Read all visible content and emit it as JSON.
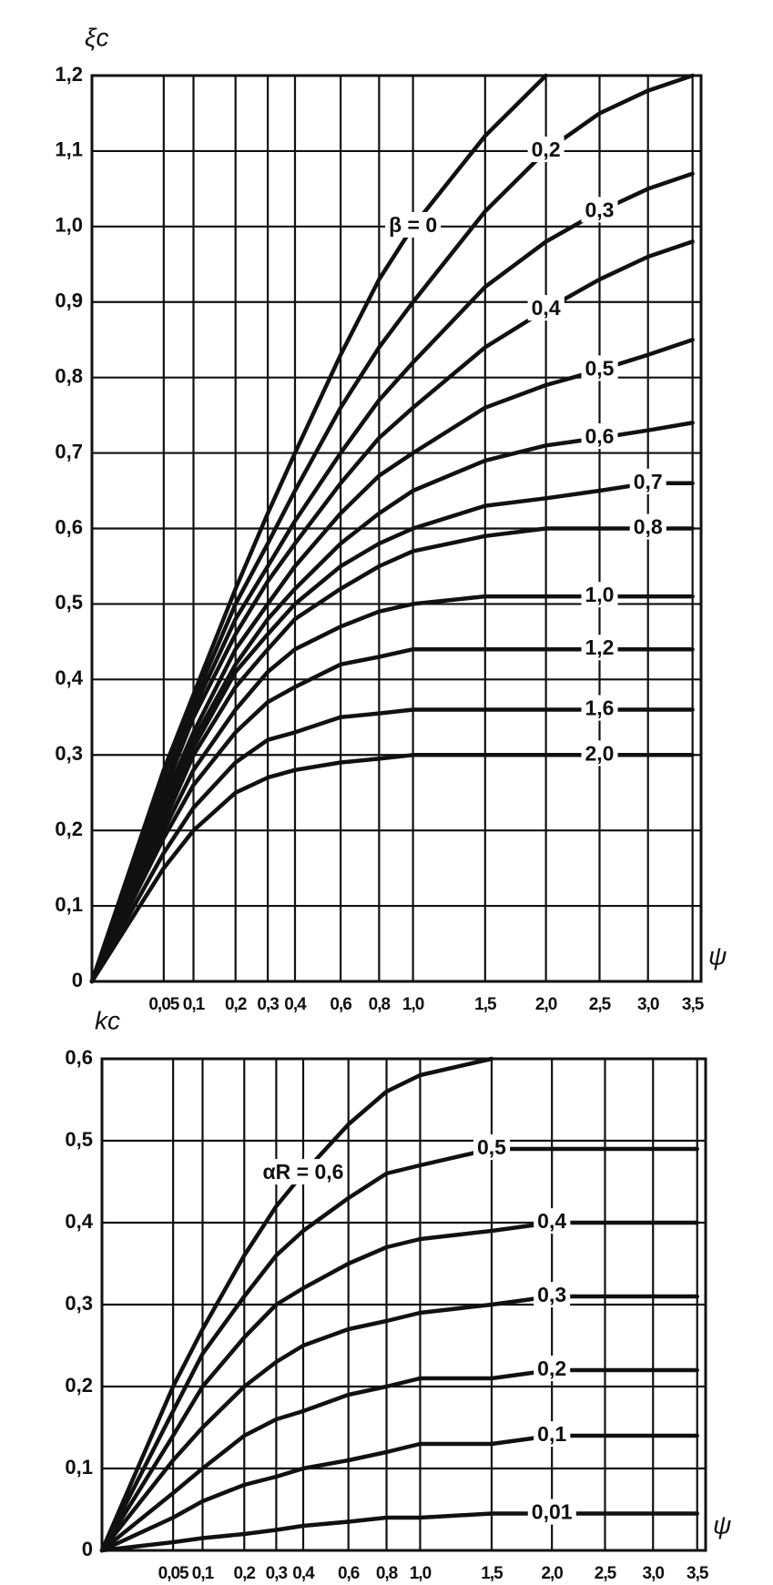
{
  "chart_data": [
    {
      "type": "line",
      "y_label": "ξc",
      "x_label": "ψ",
      "xscale": "sqrt",
      "grid": true,
      "color": "#111111",
      "xlim": [
        0,
        3.6
      ],
      "ylim": [
        0,
        1.2
      ],
      "xticks": [
        {
          "value": 0.05,
          "label": "0,05"
        },
        {
          "value": 0.1,
          "label": "0,1"
        },
        {
          "value": 0.2,
          "label": "0,2"
        },
        {
          "value": 0.3,
          "label": "0,3"
        },
        {
          "value": 0.4,
          "label": "0,4"
        },
        {
          "value": 0.6,
          "label": "0,6"
        },
        {
          "value": 0.8,
          "label": "0,8"
        },
        {
          "value": 1.0,
          "label": "1,0"
        },
        {
          "value": 1.5,
          "label": "1,5"
        },
        {
          "value": 2.0,
          "label": "2,0"
        },
        {
          "value": 2.5,
          "label": "2,5"
        },
        {
          "value": 3.0,
          "label": "3,0"
        },
        {
          "value": 3.5,
          "label": "3,5"
        }
      ],
      "yticks": [
        0,
        {
          "value": 0.1,
          "label": "0,1"
        },
        {
          "value": 0.2,
          "label": "0,2"
        },
        {
          "value": 0.3,
          "label": "0,3"
        },
        {
          "value": 0.4,
          "label": "0,4"
        },
        {
          "value": 0.5,
          "label": "0,5"
        },
        {
          "value": 0.6,
          "label": "0,6"
        },
        {
          "value": 0.7,
          "label": "0,7"
        },
        {
          "value": 0.8,
          "label": "0,8"
        },
        {
          "value": 0.9,
          "label": "0,9"
        },
        {
          "value": 1.0,
          "label": "1,0"
        },
        {
          "value": 1.1,
          "label": "1,1"
        },
        {
          "value": 1.2,
          "label": "1,2"
        }
      ],
      "x": [
        0,
        0.05,
        0.1,
        0.2,
        0.3,
        0.4,
        0.6,
        0.8,
        1.0,
        1.5,
        2.0,
        2.5,
        3.0,
        3.5
      ],
      "series": [
        {
          "name": "β = 0",
          "values": [
            0,
            0.28,
            0.38,
            0.52,
            0.62,
            0.7,
            0.83,
            0.93,
            1.0,
            1.12,
            1.2,
            null,
            null,
            null
          ]
        },
        {
          "name": "0,2",
          "values": [
            0,
            0.27,
            0.37,
            0.5,
            0.58,
            0.65,
            0.76,
            0.84,
            0.9,
            1.02,
            1.1,
            1.15,
            1.18,
            1.2
          ]
        },
        {
          "name": "0,3",
          "values": [
            0,
            0.26,
            0.36,
            0.48,
            0.55,
            0.61,
            0.7,
            0.77,
            0.82,
            0.92,
            0.98,
            1.02,
            1.05,
            1.07
          ]
        },
        {
          "name": "0,4",
          "values": [
            0,
            0.25,
            0.35,
            0.46,
            0.53,
            0.58,
            0.66,
            0.72,
            0.76,
            0.84,
            0.89,
            0.93,
            0.96,
            0.98
          ]
        },
        {
          "name": "0,5",
          "values": [
            0,
            0.24,
            0.33,
            0.44,
            0.5,
            0.55,
            0.62,
            0.67,
            0.7,
            0.76,
            0.79,
            0.81,
            0.83,
            0.85
          ]
        },
        {
          "name": "0,6",
          "values": [
            0,
            0.23,
            0.32,
            0.42,
            0.48,
            0.52,
            0.58,
            0.62,
            0.65,
            0.69,
            0.71,
            0.72,
            0.73,
            0.74
          ]
        },
        {
          "name": "0,7",
          "values": [
            0,
            0.22,
            0.31,
            0.41,
            0.46,
            0.5,
            0.55,
            0.58,
            0.6,
            0.63,
            0.64,
            0.65,
            0.66,
            0.66
          ]
        },
        {
          "name": "0,8",
          "values": [
            0,
            0.21,
            0.3,
            0.39,
            0.44,
            0.48,
            0.52,
            0.55,
            0.57,
            0.59,
            0.6,
            0.6,
            0.6,
            0.6
          ]
        },
        {
          "name": "1,0",
          "values": [
            0,
            0.2,
            0.28,
            0.36,
            0.41,
            0.44,
            0.47,
            0.49,
            0.5,
            0.51,
            0.51,
            0.51,
            0.51,
            0.51
          ]
        },
        {
          "name": "1,2",
          "values": [
            0,
            0.19,
            0.26,
            0.33,
            0.37,
            0.39,
            0.42,
            0.43,
            0.44,
            0.44,
            0.44,
            0.44,
            0.44,
            0.44
          ]
        },
        {
          "name": "1,6",
          "values": [
            0,
            0.17,
            0.23,
            0.29,
            0.32,
            0.33,
            0.35,
            0.355,
            0.36,
            0.36,
            0.36,
            0.36,
            0.36,
            0.36
          ]
        },
        {
          "name": "2,0",
          "values": [
            0,
            0.15,
            0.2,
            0.25,
            0.27,
            0.28,
            0.29,
            0.295,
            0.3,
            0.3,
            0.3,
            0.3,
            0.3,
            0.3
          ]
        }
      ]
    },
    {
      "type": "line",
      "y_label": "kc",
      "x_label": "ψ",
      "xscale": "sqrt",
      "grid": true,
      "color": "#111111",
      "xlim": [
        0,
        3.6
      ],
      "ylim": [
        0,
        0.6
      ],
      "xticks": [
        {
          "value": 0.05,
          "label": "0,05"
        },
        {
          "value": 0.1,
          "label": "0,1"
        },
        {
          "value": 0.2,
          "label": "0,2"
        },
        {
          "value": 0.3,
          "label": "0,3"
        },
        {
          "value": 0.4,
          "label": "0,4"
        },
        {
          "value": 0.6,
          "label": "0,6"
        },
        {
          "value": 0.8,
          "label": "0,8"
        },
        {
          "value": 1.0,
          "label": "1,0"
        },
        {
          "value": 1.5,
          "label": "1,5"
        },
        {
          "value": 2.0,
          "label": "2,0"
        },
        {
          "value": 2.5,
          "label": "2,5"
        },
        {
          "value": 3.0,
          "label": "3,0"
        },
        {
          "value": 3.5,
          "label": "3,5"
        }
      ],
      "yticks": [
        0,
        {
          "value": 0.1,
          "label": "0,1"
        },
        {
          "value": 0.2,
          "label": "0,2"
        },
        {
          "value": 0.3,
          "label": "0,3"
        },
        {
          "value": 0.4,
          "label": "0,4"
        },
        {
          "value": 0.5,
          "label": "0,5"
        },
        {
          "value": 0.6,
          "label": "0,6"
        }
      ],
      "x": [
        0,
        0.05,
        0.1,
        0.2,
        0.3,
        0.4,
        0.6,
        0.8,
        1.0,
        1.5,
        2.0,
        2.5,
        3.0,
        3.5
      ],
      "series": [
        {
          "name": "αR = 0,6",
          "values": [
            0,
            0.2,
            0.27,
            0.36,
            0.42,
            0.46,
            0.52,
            0.56,
            0.58,
            0.6,
            null,
            null,
            null,
            null
          ]
        },
        {
          "name": "0,5",
          "values": [
            0,
            0.17,
            0.24,
            0.31,
            0.36,
            0.39,
            0.43,
            0.46,
            0.47,
            0.49,
            0.49,
            0.49,
            0.49,
            0.49
          ]
        },
        {
          "name": "0,4",
          "values": [
            0,
            0.14,
            0.2,
            0.26,
            0.3,
            0.32,
            0.35,
            0.37,
            0.38,
            0.39,
            0.4,
            0.4,
            0.4,
            0.4
          ]
        },
        {
          "name": "0,3",
          "values": [
            0,
            0.11,
            0.15,
            0.2,
            0.23,
            0.25,
            0.27,
            0.28,
            0.29,
            0.3,
            0.31,
            0.31,
            0.31,
            0.31
          ]
        },
        {
          "name": "0,2",
          "values": [
            0,
            0.07,
            0.1,
            0.14,
            0.16,
            0.17,
            0.19,
            0.2,
            0.21,
            0.21,
            0.22,
            0.22,
            0.22,
            0.22
          ]
        },
        {
          "name": "0,1",
          "values": [
            0,
            0.04,
            0.06,
            0.08,
            0.09,
            0.1,
            0.11,
            0.12,
            0.13,
            0.13,
            0.14,
            0.14,
            0.14,
            0.14
          ]
        },
        {
          "name": "0,01",
          "values": [
            0,
            0.01,
            0.015,
            0.02,
            0.025,
            0.03,
            0.035,
            0.04,
            0.04,
            0.045,
            0.045,
            0.045,
            0.045,
            0.045
          ]
        }
      ]
    }
  ]
}
